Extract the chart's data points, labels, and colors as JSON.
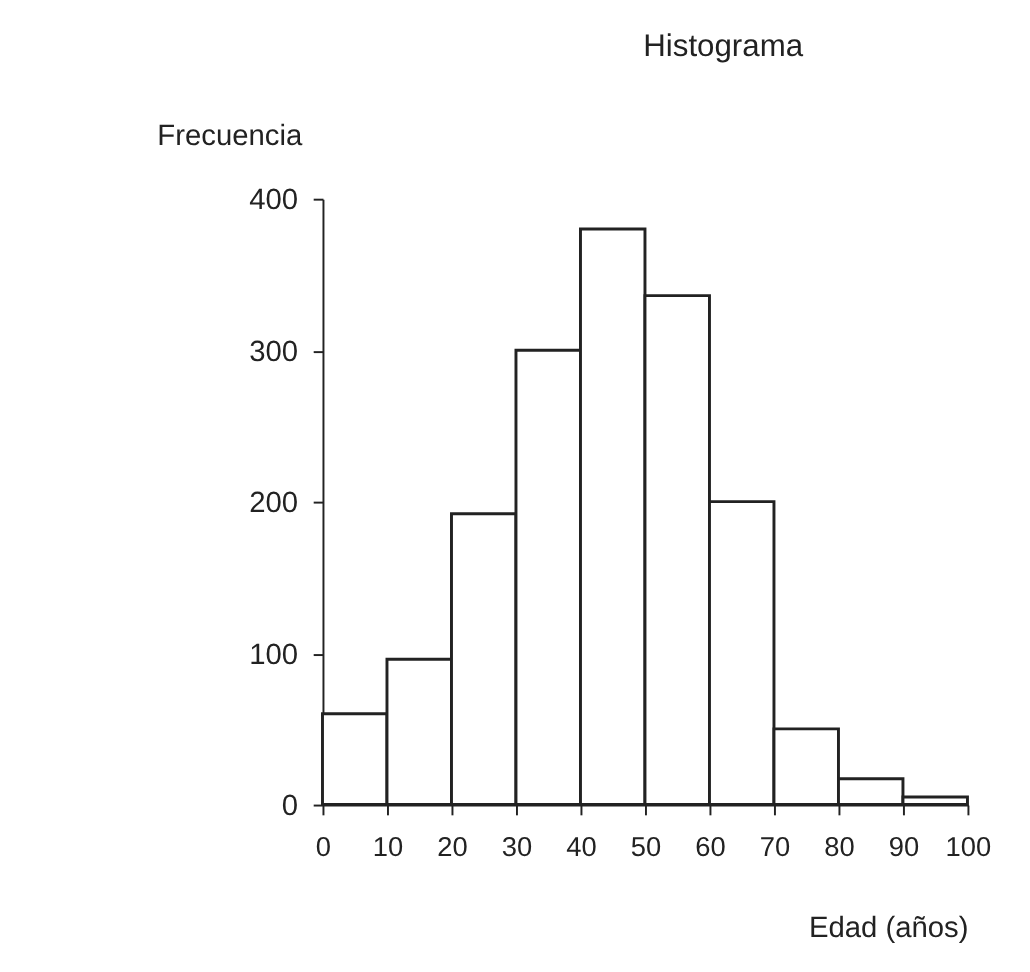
{
  "chart_data": {
    "type": "histogram",
    "title": "Histograma",
    "xlabel": "Edad (años)",
    "ylabel": "Frecuencia",
    "bins": [
      0,
      10,
      20,
      30,
      40,
      50,
      60,
      70,
      80,
      90,
      100
    ],
    "values": [
      60,
      96,
      192,
      300,
      380,
      336,
      200,
      50,
      17,
      5
    ],
    "color": "#ffffff",
    "xlim": [
      0,
      100
    ],
    "xticks": [
      0,
      10,
      20,
      30,
      40,
      50,
      60,
      70,
      80,
      90,
      100
    ],
    "ylim": [
      0,
      400
    ],
    "yticks": [
      0,
      100,
      200,
      300,
      400
    ],
    "grid": false
  }
}
